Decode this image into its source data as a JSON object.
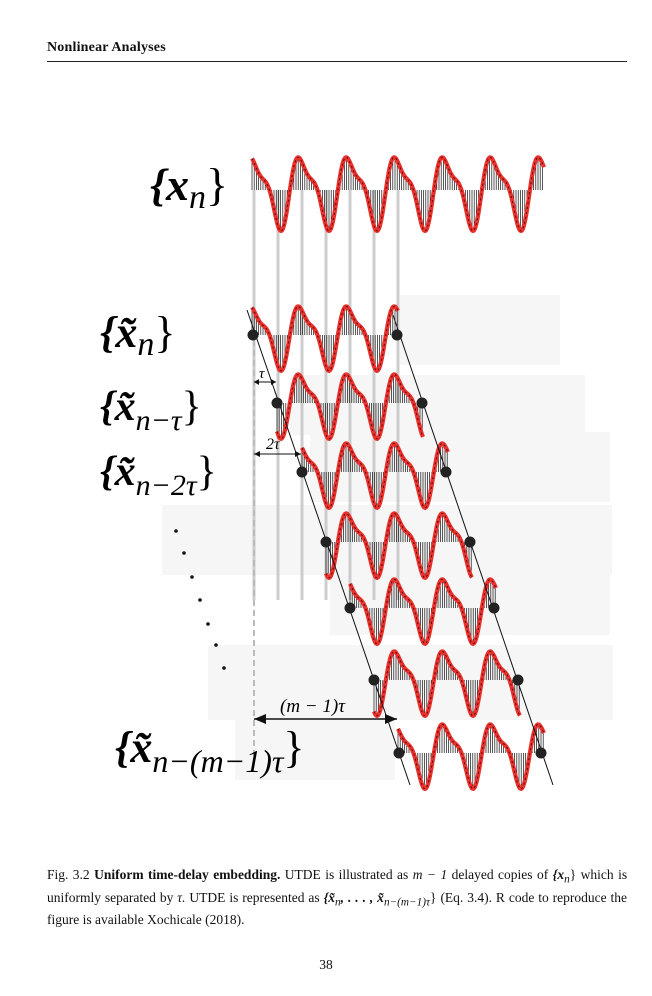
{
  "running_head": "Nonlinear Analyses",
  "figure": {
    "series_labels": [
      {
        "id": "x_n",
        "base": "{x",
        "sub": "n",
        "close": "}"
      },
      {
        "id": "xt_n",
        "base": "{x̃",
        "sub": "n",
        "close": "}"
      },
      {
        "id": "xt_n_tau",
        "base": "{x̃",
        "sub": "n−τ",
        "close": "}"
      },
      {
        "id": "xt_n_2tau",
        "base": "{x̃",
        "sub": "n−2τ",
        "close": "}"
      },
      {
        "id": "xt_n_m1tau",
        "base": "{x̃",
        "sub": "n−(m−1)τ",
        "close": "}"
      }
    ],
    "delay_labels": {
      "tau": "τ",
      "two_tau": "2τ",
      "m1_tau": "(m − 1)τ"
    },
    "colors": {
      "signal": "#e8312d",
      "signal_dash": "#4a0000",
      "stems": "#111111",
      "guides": "#cccccc",
      "dots": "#222222",
      "lines": "#111111"
    }
  },
  "caption": {
    "fig_label": "Fig. 3.2",
    "title": "Uniform time-delay embedding.",
    "t1": "UTDE is illustrated as",
    "math1": "m − 1",
    "t2": "delayed copies of",
    "math2": "{x",
    "math2_sub": "n",
    "math2_close": "}",
    "t3": "which is uniformly separated by",
    "math3": "τ.",
    "t4": "UTDE is represented as",
    "math4": "{x̃",
    "math4_sub": "n",
    "math4_mid": ", . . . , x̃",
    "math4_sub2": "n−(m−1)τ",
    "math4_close": "}",
    "t5": "(Eq. 3.4). R code to reproduce the figure is available Xochicale (2018)."
  },
  "page_number": "38"
}
